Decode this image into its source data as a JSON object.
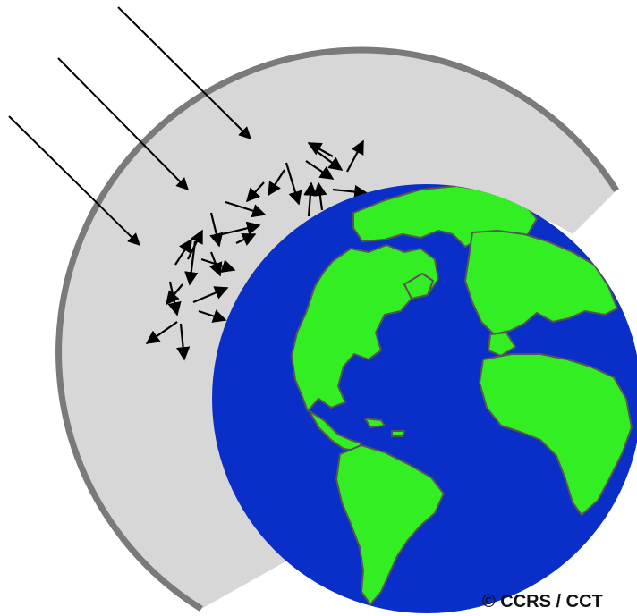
{
  "credit": "© CCRS / CCT",
  "colors": {
    "ocean": "#0a2fc8",
    "land": "#33ee22",
    "coast": "#555555",
    "atmosphere_fill": "#d7d7d7",
    "atmosphere_edge": "#7a7a7a",
    "arrow": "#000000"
  },
  "icons": {
    "incoming_radiation": "arrow-icon",
    "scattered_radiation": "arrow-icon"
  }
}
